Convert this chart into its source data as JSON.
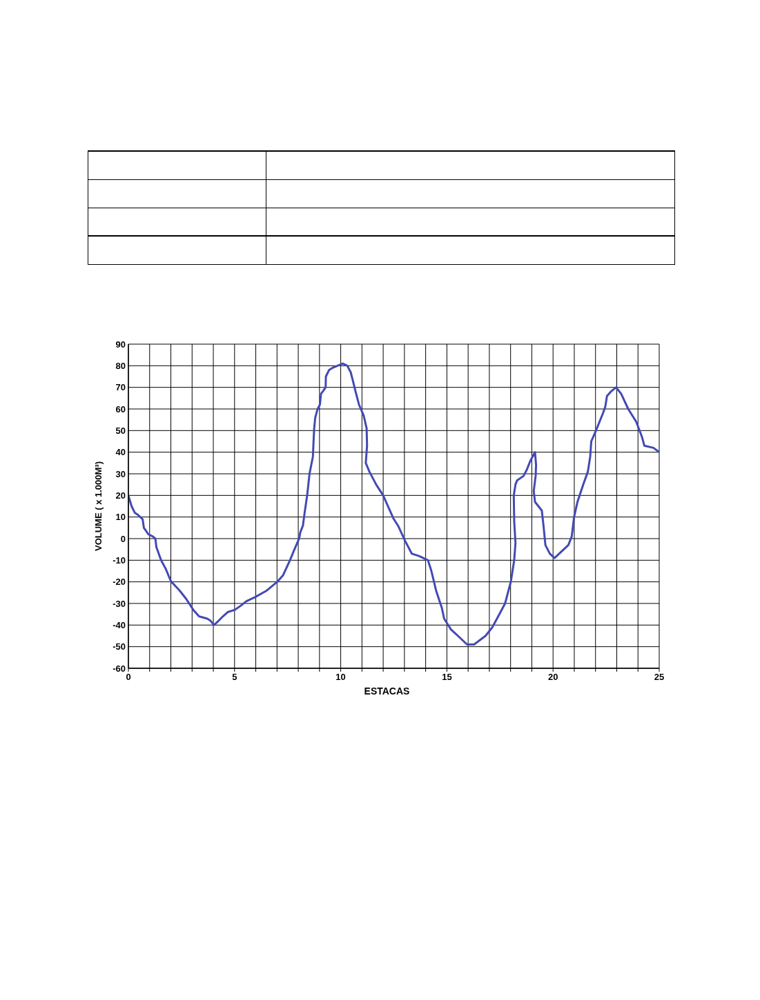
{
  "chart_data": {
    "type": "line",
    "xlabel": "ESTACAS",
    "ylabel": "VOLUME ( x 1.000M³)",
    "x": [
      0,
      0.15,
      0.3,
      0.45,
      0.67,
      0.73,
      0.8,
      0.94,
      1.15,
      1.27,
      1.32,
      1.54,
      1.76,
      1.97,
      2.03,
      2.41,
      2.73,
      3.06,
      3.33,
      3.71,
      3.87,
      4.03,
      4.25,
      4.45,
      4.68,
      5.0,
      5.3,
      5.55,
      5.98,
      6.52,
      7.01,
      7.28,
      7.61,
      7.82,
      8.04,
      8.1,
      8.22,
      8.3,
      8.42,
      8.53,
      8.69,
      8.72,
      8.75,
      8.8,
      8.91,
      9.02,
      9.07,
      9.15,
      9.29,
      9.3,
      9.45,
      9.61,
      9.85,
      10.1,
      10.31,
      10.47,
      10.6,
      10.7,
      10.86,
      11.08,
      11.22,
      11.24,
      11.18,
      11.35,
      11.67,
      12.0,
      12.27,
      12.5,
      12.7,
      13.03,
      13.35,
      13.68,
      14.11,
      14.27,
      14.49,
      14.76,
      14.87,
      15.19,
      15.52,
      15.95,
      16.28,
      16.82,
      17.14,
      17.47,
      17.74,
      18.01,
      18.17,
      18.23,
      18.17,
      18.15,
      18.23,
      18.31,
      18.61,
      18.77,
      18.93,
      19.15,
      19.2,
      19.18,
      19.09,
      19.15,
      19.47,
      19.55,
      19.64,
      19.85,
      20.07,
      20.39,
      20.72,
      20.88,
      20.99,
      21.15,
      21.42,
      21.64,
      21.75,
      21.8,
      22.02,
      22.35,
      22.46,
      22.54,
      22.72,
      22.97,
      23.21,
      23.54,
      23.92,
      24.19,
      24.3,
      24.73,
      25.0
    ],
    "values": [
      20,
      15,
      12,
      11,
      9,
      5,
      4,
      2,
      1,
      0,
      -4,
      -10,
      -14,
      -19,
      -20,
      -24,
      -28,
      -33,
      -36,
      -37,
      -38,
      -40,
      -38,
      -36,
      -34,
      -33,
      -31,
      -29,
      -27,
      -24,
      -20,
      -17,
      -10,
      -5,
      0,
      3,
      6,
      12,
      20,
      30,
      38,
      45,
      51,
      56,
      60,
      62,
      67,
      68,
      70,
      75,
      78,
      79,
      80,
      81,
      80,
      77,
      72,
      68,
      62,
      57,
      51,
      43,
      35,
      31,
      25,
      20,
      14,
      9,
      6,
      -1,
      -7,
      -8,
      -10,
      -15,
      -24,
      -32,
      -37,
      -42,
      -45,
      -49,
      -49,
      -45,
      -41,
      -35,
      -30,
      -20,
      -10,
      -2,
      8,
      20,
      25,
      27,
      29,
      32,
      36,
      40,
      34,
      29,
      22,
      17,
      13,
      6,
      -3,
      -7,
      -9,
      -6,
      -3,
      1,
      10,
      17,
      25,
      31,
      38,
      45,
      50,
      58,
      61,
      66,
      68,
      70,
      67,
      60,
      54,
      47,
      43,
      42,
      40
    ],
    "color": "#4349b3",
    "marker": "none",
    "line_style": "solid",
    "grid": true,
    "xlim": [
      0,
      25
    ],
    "xticks": [
      0,
      {
        "value": 1,
        "label": null
      },
      {
        "value": 2,
        "label": null
      },
      {
        "value": 3,
        "label": null
      },
      {
        "value": 4,
        "label": null
      },
      5,
      {
        "value": 6,
        "label": null
      },
      {
        "value": 7,
        "label": null
      },
      {
        "value": 8,
        "label": null
      },
      {
        "value": 9,
        "label": null
      },
      10,
      {
        "value": 11,
        "label": null
      },
      {
        "value": 12,
        "label": null
      },
      {
        "value": 13,
        "label": null
      },
      {
        "value": 14,
        "label": null
      },
      15,
      {
        "value": 16,
        "label": null
      },
      {
        "value": 17,
        "label": null
      },
      {
        "value": 18,
        "label": null
      },
      {
        "value": 19,
        "label": null
      },
      20,
      {
        "value": 21,
        "label": null
      },
      {
        "value": 22,
        "label": null
      },
      {
        "value": 23,
        "label": null
      },
      {
        "value": 24,
        "label": null
      },
      25
    ],
    "ylim": [
      -60,
      90
    ],
    "yticks": [
      -60,
      -50,
      -40,
      -30,
      -20,
      -10,
      0,
      10,
      20,
      30,
      40,
      50,
      60,
      70,
      80,
      90
    ]
  }
}
